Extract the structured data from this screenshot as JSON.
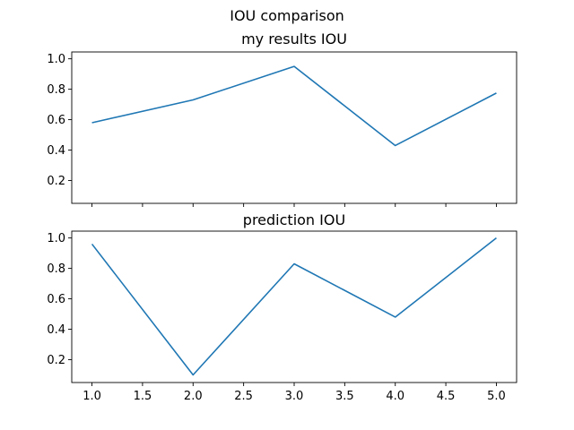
{
  "figure": {
    "suptitle": "IOU comparison"
  },
  "chart_data": [
    {
      "type": "line",
      "title": "my results IOU",
      "xlabel": "",
      "ylabel": "",
      "x": [
        1,
        2,
        3,
        4,
        5
      ],
      "series": [
        {
          "values": [
            0.58,
            0.73,
            0.95,
            0.43,
            0.775
          ],
          "color": "#1f77b4"
        }
      ],
      "xlim": [
        0.8,
        5.2
      ],
      "ylim": [
        0.05,
        1.045
      ],
      "yticks": [
        0.2,
        0.4,
        0.6,
        0.8,
        1.0
      ],
      "ytick_labels": [
        "0.2",
        "0.4",
        "0.6",
        "0.8",
        "1.0"
      ],
      "xticks": [
        1.0,
        1.5,
        2.0,
        2.5,
        3.0,
        3.5,
        4.0,
        4.5,
        5.0
      ],
      "xtick_labels": [],
      "grid": false,
      "legend": "none"
    },
    {
      "type": "line",
      "title": "prediction IOU",
      "xlabel": "",
      "ylabel": "",
      "x": [
        1,
        2,
        3,
        4,
        5
      ],
      "series": [
        {
          "values": [
            0.96,
            0.1,
            0.83,
            0.48,
            1.0
          ],
          "color": "#1f77b4"
        }
      ],
      "xlim": [
        0.8,
        5.2
      ],
      "ylim": [
        0.05,
        1.045
      ],
      "yticks": [
        0.2,
        0.4,
        0.6,
        0.8,
        1.0
      ],
      "ytick_labels": [
        "0.2",
        "0.4",
        "0.6",
        "0.8",
        "1.0"
      ],
      "xticks": [
        1.0,
        1.5,
        2.0,
        2.5,
        3.0,
        3.5,
        4.0,
        4.5,
        5.0
      ],
      "xtick_labels": [
        "1.0",
        "1.5",
        "2.0",
        "2.5",
        "3.0",
        "3.5",
        "4.0",
        "4.5",
        "5.0"
      ],
      "grid": false,
      "legend": "none"
    }
  ]
}
